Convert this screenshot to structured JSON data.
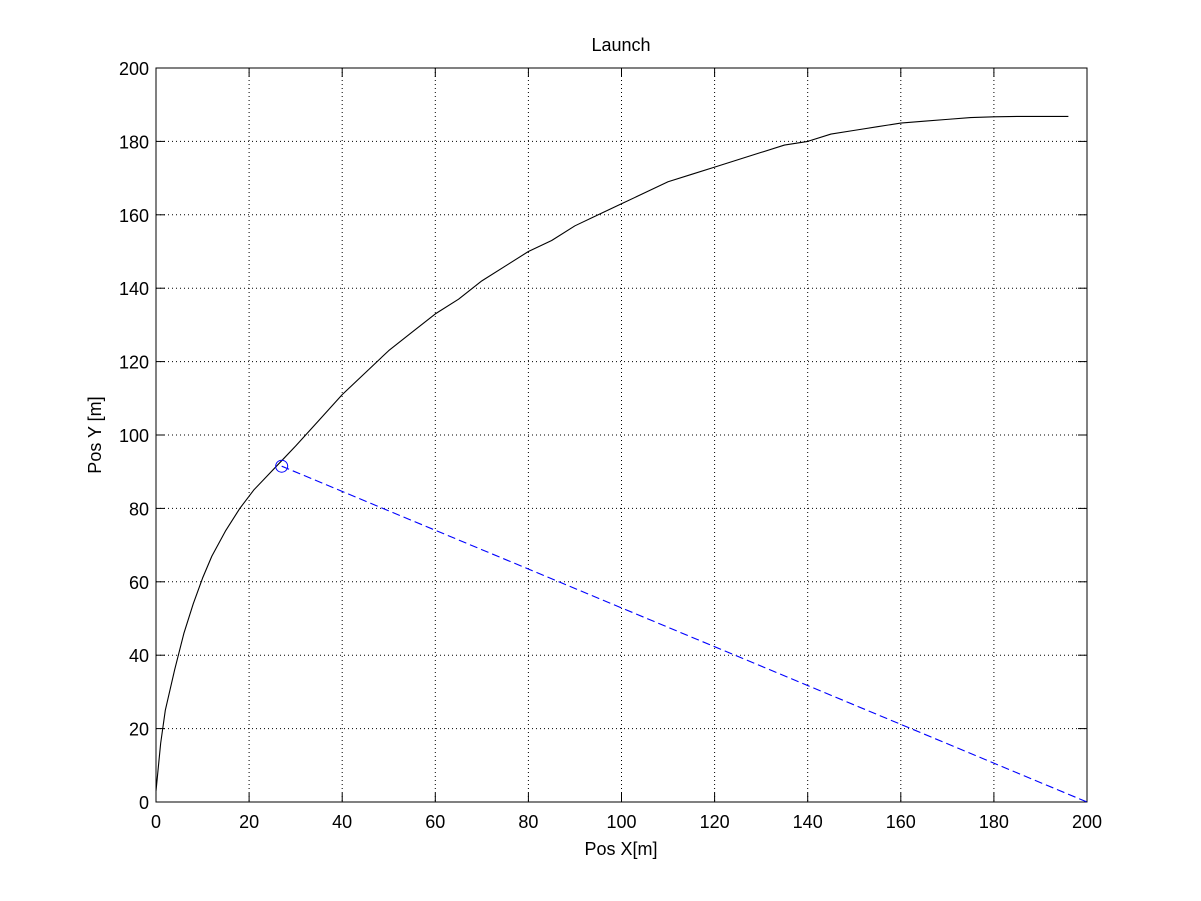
{
  "chart_data": {
    "type": "line",
    "title": "Launch",
    "xlabel": "Pos X[m]",
    "ylabel": "Pos Y [m]",
    "xlim": [
      0,
      200
    ],
    "ylim": [
      0,
      200
    ],
    "xticks": [
      0,
      20,
      40,
      60,
      80,
      100,
      120,
      140,
      160,
      180,
      200
    ],
    "yticks": [
      0,
      20,
      40,
      60,
      80,
      100,
      120,
      140,
      160,
      180,
      200
    ],
    "grid": true,
    "legend": "none",
    "series": [
      {
        "style": "solid",
        "color": "#000000",
        "points": [
          [
            0,
            3
          ],
          [
            1,
            16
          ],
          [
            2,
            25
          ],
          [
            4,
            36
          ],
          [
            6,
            46
          ],
          [
            8,
            54
          ],
          [
            10,
            61
          ],
          [
            12,
            67
          ],
          [
            15,
            74
          ],
          [
            18,
            80
          ],
          [
            21,
            85
          ],
          [
            24,
            89
          ],
          [
            27,
            93
          ],
          [
            30,
            97
          ],
          [
            35,
            104
          ],
          [
            40,
            111
          ],
          [
            45,
            117
          ],
          [
            50,
            123
          ],
          [
            55,
            128
          ],
          [
            60,
            133
          ],
          [
            65,
            137
          ],
          [
            70,
            142
          ],
          [
            75,
            146
          ],
          [
            80,
            150
          ],
          [
            85,
            153
          ],
          [
            90,
            157
          ],
          [
            95,
            160
          ],
          [
            100,
            163
          ],
          [
            105,
            166
          ],
          [
            110,
            169
          ],
          [
            115,
            171
          ],
          [
            120,
            173
          ],
          [
            125,
            175
          ],
          [
            130,
            177
          ],
          [
            135,
            179
          ],
          [
            140,
            180
          ],
          [
            145,
            182
          ],
          [
            150,
            183
          ],
          [
            155,
            184
          ],
          [
            160,
            185
          ],
          [
            165,
            185.5
          ],
          [
            170,
            186
          ],
          [
            175,
            186.5
          ],
          [
            180,
            186.7
          ],
          [
            185,
            186.8
          ],
          [
            190,
            186.8
          ],
          [
            196,
            186.8
          ]
        ]
      },
      {
        "style": "dashed",
        "color": "#0000ff",
        "points": [
          [
            27,
            91.5
          ],
          [
            200,
            0
          ]
        ]
      }
    ],
    "markers": [
      {
        "shape": "circle",
        "color": "#0000ff",
        "x": 27,
        "y": 91.5
      }
    ]
  },
  "colors": {
    "curve": "#000000",
    "tether": "#0000ff",
    "grid": "#000000",
    "axes": "#000000"
  }
}
